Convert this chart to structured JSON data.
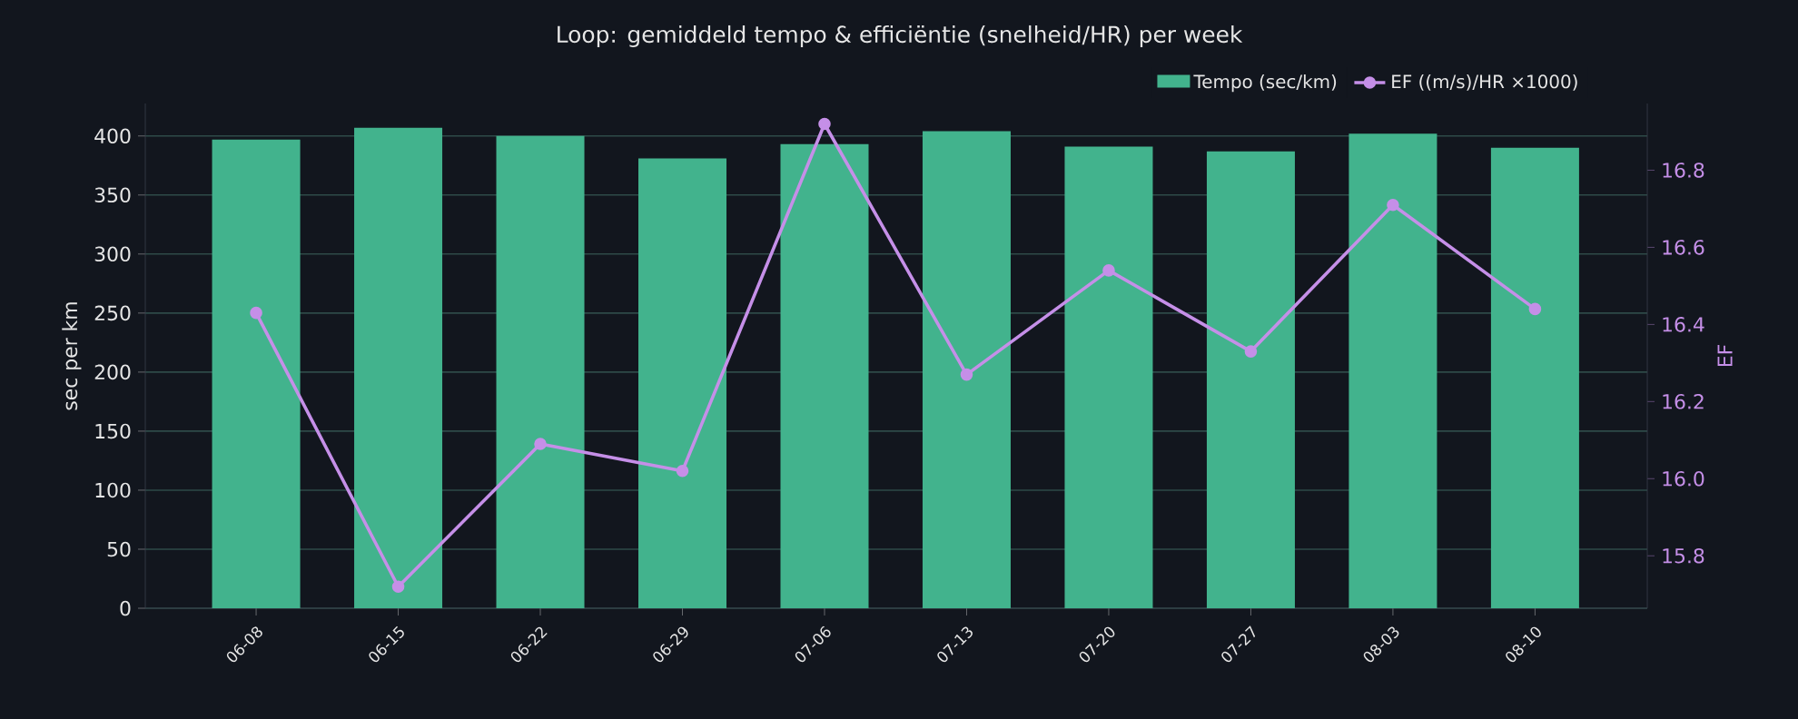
{
  "chart_data": {
    "type": "bar",
    "title": "Loop: gemiddeld tempo & efficiëntie (snelheid/HR) per week",
    "categories": [
      "06-08",
      "06-15",
      "06-22",
      "06-29",
      "07-06",
      "07-13",
      "07-20",
      "07-27",
      "08-03",
      "08-10"
    ],
    "series": [
      {
        "name": "Tempo (sec/km)",
        "color": "#42b38d",
        "values": [
          397,
          407,
          400,
          381,
          393,
          404,
          391,
          387,
          402,
          390
        ]
      },
      {
        "name": "EF ((m/s)/HR ×1000)",
        "type": "line",
        "axis": "y2",
        "color": "#c58fe8",
        "values": [
          16.43,
          15.72,
          16.09,
          16.02,
          16.92,
          16.27,
          16.54,
          16.33,
          16.71,
          16.44
        ]
      }
    ],
    "ylabel": "sec per km",
    "y2label": "EF",
    "ylim": [
      0,
      427.5
    ],
    "yticks": [
      0,
      50,
      100,
      150,
      200,
      250,
      300,
      350,
      400
    ],
    "y2lim": [
      15.664,
      16.973
    ],
    "y2ticks": [
      15.8,
      {
        "value": 16,
        "label": "16.0"
      },
      16.2,
      16.4,
      16.6,
      16.8
    ],
    "grid": "y",
    "legend": "top right",
    "marker": "circle",
    "line_style": "solid"
  }
}
